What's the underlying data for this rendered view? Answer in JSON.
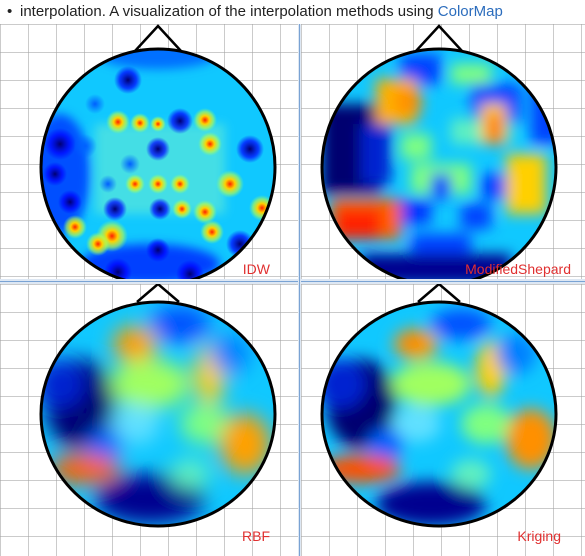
{
  "intro": {
    "bullet": "•",
    "text": "interpolation. A visualization of the interpolation methods using ",
    "link": "ColorMap"
  },
  "panels": {
    "idw": {
      "label": "IDW"
    },
    "modified_shepard": {
      "label": "ModifiedShepard"
    },
    "rbf": {
      "label": "RBF"
    },
    "kriging": {
      "label": "Kriging"
    }
  },
  "colormap": {
    "name": "jet",
    "stops": [
      "#00008f",
      "#0000ff",
      "#00a0ff",
      "#00ffff",
      "#80ff80",
      "#ffff00",
      "#ff8000",
      "#ff0000"
    ]
  }
}
